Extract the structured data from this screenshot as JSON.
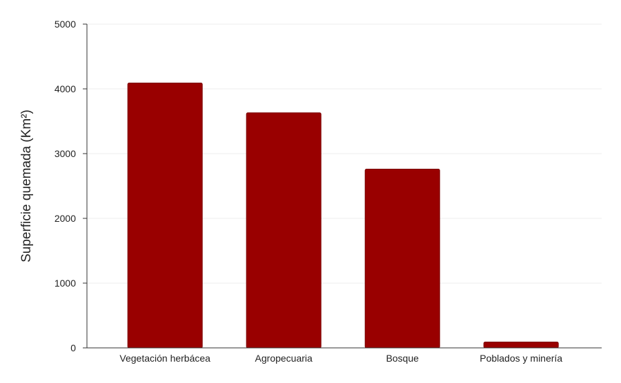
{
  "colors": {
    "bar": "#990000",
    "bar_edge": "#7a0000",
    "grid": "#eeeeee",
    "axis": "#333333",
    "text": "#222222"
  },
  "chart_data": {
    "type": "bar",
    "categories": [
      "Vegetación herbácea",
      "Agropecuaria",
      "Bosque",
      "Poblados y minería"
    ],
    "values": [
      4090,
      3630,
      2760,
      90
    ],
    "title": "",
    "xlabel": "",
    "ylabel": "Superficie quemada (Km²)",
    "ylim": [
      0,
      5000
    ],
    "yticks": [
      0,
      1000,
      2000,
      3000,
      4000,
      5000
    ],
    "grid": true,
    "legend": "none"
  }
}
